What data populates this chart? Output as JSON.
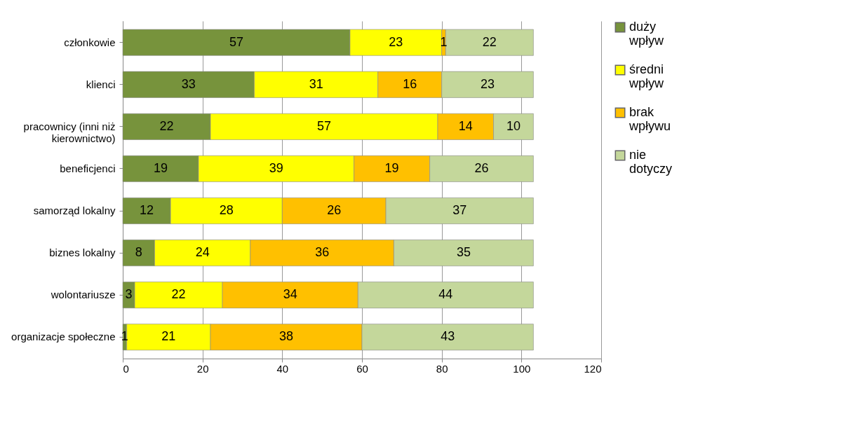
{
  "chart_data": {
    "type": "bar",
    "orientation": "horizontal",
    "stacked": true,
    "categories": [
      "członkowie",
      "klienci",
      "pracownicy (inni niż kierownictwo)",
      "beneficjenci",
      "samorząd lokalny",
      "biznes lokalny",
      "wolontariusze",
      "organizacje społeczne"
    ],
    "series": [
      {
        "name": "duży wpływ",
        "color": "#77933c",
        "values": [
          57,
          33,
          22,
          19,
          12,
          8,
          3,
          1
        ]
      },
      {
        "name": "średni wpływ",
        "color": "#ffff00",
        "values": [
          23,
          31,
          57,
          39,
          28,
          24,
          22,
          21
        ]
      },
      {
        "name": "brak wpływu",
        "color": "#ffc000",
        "values": [
          1,
          16,
          14,
          19,
          26,
          36,
          34,
          38
        ]
      },
      {
        "name": "nie dotyczy",
        "color": "#c4d79b",
        "values": [
          22,
          23,
          10,
          26,
          37,
          35,
          44,
          43
        ]
      }
    ],
    "xlim": [
      0,
      120
    ],
    "xticks": [
      0,
      20,
      40,
      60,
      80,
      100,
      120
    ],
    "grid": "x",
    "legend": "right",
    "data_labels": true
  }
}
